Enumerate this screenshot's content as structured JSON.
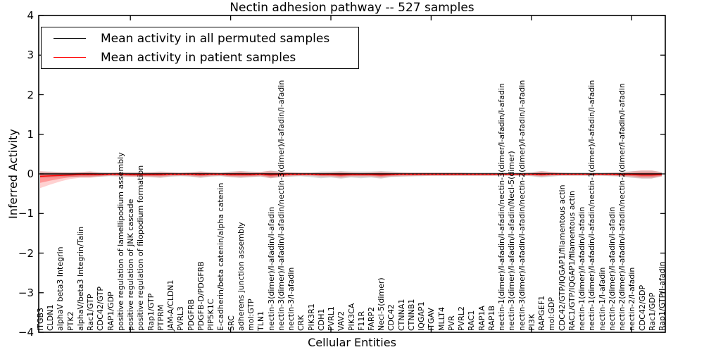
{
  "chart_data": {
    "type": "line",
    "title": "Nectin adhesion pathway -- 527 samples",
    "xlabel": "Cellular Entities",
    "ylabel": "Inferred Activity",
    "ylim": [
      -4,
      4
    ],
    "yticks": [
      -4,
      -3,
      -2,
      -1,
      0,
      1,
      2,
      3,
      4
    ],
    "grid": false,
    "legend_position": "upper left",
    "entities": [
      "ITGB3",
      "CLDN1",
      "alphaV beta3 Integrin",
      "PTK2",
      "alphaV/beta3 Integrin/Talin",
      "Rac1/GTP",
      "CDC42/GTP",
      "RAP1/GDP",
      "positive regulation of lamellipodium assembly",
      "positive regulation of JNK cascade",
      "positive regulation of filopodium formation",
      "Rap1/GTP",
      "PTPRM",
      "JAM-A/CLDN1",
      "PVRL3",
      "PDGFRB",
      "PDGFB-D/PDGFRB",
      "PIP5K1C",
      "E-cadherin/beta catenin/alpha catenin",
      "SRC",
      "adherens junction assembly",
      "mol:GTP",
      "TLN1",
      "nectin-3(dimer)/I-afadin/I-afadin",
      "nectin-3(dimer)/I-afadin/I-afadin/nectin-3(dimer)/I-afadin/I-afadin",
      "nectin-3/I-afadin",
      "CRK",
      "PIK3R1",
      "CDH1",
      "PVRL1",
      "VAV2",
      "PIK3CA",
      "F11R",
      "FARP2",
      "Necl-5(dimer)",
      "CDC42",
      "CTNNA1",
      "CTNNB1",
      "IQGAP1",
      "ITGAV",
      "MLLT4",
      "PVR",
      "PVRL2",
      "RAC1",
      "RAP1A",
      "RAP1B",
      "nectin-1(dimer)/I-afadin/I-afadin/nectin-3(dimer/I-afadin/I-afadin",
      "nectin-3(dimer)/I-afadin/I-afadin/Necl-5(dimer)",
      "nectin-3(dimer)/I-afadin/I-afadin/nectin-2(dimer)/I-afadin/I-afadin",
      "PI3K",
      "RAPGEF1",
      "mol:GDP",
      "CDC42/GTP/IQGAP1/filamentous actin",
      "RAC1/GTP/IQGAP1/filamentous actin",
      "nectin-1(dimer)/I-afadin/I-afadin",
      "nectin-1(dimer)/I-afadin/I-afadin/nectin-1(dimer)/I-afadin/I-afadin",
      "nectin-1/I-afadin",
      "nectin-2(dimer)/I-afadin/I-afadin",
      "nectin-2(dimer)/I-afadin/I-afadin/nectin-2(dimer/I-afadin/I-afadin",
      "nectin-2/I-afadin",
      "CDC42/GDP",
      "Rac1/GDP",
      "Rap1/GTP/I-afadin"
    ],
    "series": [
      {
        "name": "Mean activity in all permuted samples",
        "color": "#000000",
        "band_color": "#aaaaaa",
        "values": [
          0,
          0,
          0,
          0,
          0,
          0,
          0,
          0,
          0,
          0,
          0,
          0,
          0,
          0,
          0,
          0,
          0,
          0,
          0,
          0,
          0,
          0,
          0,
          0,
          0,
          0,
          0,
          0,
          0,
          0,
          0,
          0,
          0,
          0,
          0,
          0,
          0,
          0,
          0,
          0,
          0,
          0,
          0,
          0,
          0,
          0,
          0,
          0,
          0,
          0,
          0,
          0,
          0,
          0,
          0,
          0,
          0,
          0,
          0,
          0,
          0,
          0,
          0
        ],
        "band_above": [
          0.06,
          0.06,
          0.05,
          0.05,
          0.05,
          0.06,
          0.05,
          0.04,
          0.05,
          0.05,
          0.05,
          0.05,
          0.06,
          0.05,
          0.04,
          0.05,
          0.06,
          0.05,
          0.04,
          0.06,
          0.07,
          0.06,
          0.05,
          0.08,
          0.06,
          0.05,
          0.04,
          0.04,
          0.06,
          0.06,
          0.07,
          0.06,
          0.06,
          0.06,
          0.07,
          0.06,
          0.05,
          0.04,
          0.04,
          0.04,
          0.04,
          0.04,
          0.04,
          0.04,
          0.04,
          0.04,
          0.04,
          0.04,
          0.04,
          0.05,
          0.07,
          0.05,
          0.04,
          0.04,
          0.04,
          0.04,
          0.04,
          0.04,
          0.05,
          0.07,
          0.08,
          0.08,
          0.05
        ],
        "band_below": [
          0.1,
          0.09,
          0.08,
          0.08,
          0.08,
          0.08,
          0.07,
          0.06,
          0.07,
          0.07,
          0.07,
          0.08,
          0.1,
          0.07,
          0.06,
          0.07,
          0.1,
          0.07,
          0.06,
          0.08,
          0.1,
          0.08,
          0.07,
          0.11,
          0.08,
          0.07,
          0.06,
          0.08,
          0.11,
          0.09,
          0.12,
          0.09,
          0.11,
          0.09,
          0.12,
          0.08,
          0.07,
          0.06,
          0.06,
          0.05,
          0.05,
          0.05,
          0.05,
          0.05,
          0.05,
          0.05,
          0.05,
          0.05,
          0.05,
          0.06,
          0.09,
          0.07,
          0.05,
          0.05,
          0.05,
          0.05,
          0.05,
          0.06,
          0.07,
          0.1,
          0.12,
          0.12,
          0.06
        ]
      },
      {
        "name": "Mean activity in patient samples",
        "color": "#ff0000",
        "band_color": "#ff0000",
        "values": [
          -0.06,
          -0.05,
          -0.04,
          -0.03,
          -0.02,
          -0.02,
          -0.02,
          -0.01,
          -0.01,
          -0.02,
          -0.02,
          -0.02,
          -0.02,
          -0.01,
          -0.01,
          -0.01,
          -0.02,
          -0.01,
          -0.01,
          -0.02,
          -0.02,
          -0.02,
          -0.01,
          -0.03,
          -0.02,
          -0.01,
          -0.01,
          -0.01,
          -0.02,
          -0.02,
          -0.03,
          -0.02,
          -0.02,
          -0.02,
          -0.03,
          -0.02,
          -0.01,
          -0.01,
          -0.01,
          -0.01,
          -0.01,
          -0.01,
          -0.01,
          -0.01,
          -0.01,
          -0.01,
          -0.01,
          -0.01,
          -0.01,
          -0.01,
          -0.02,
          -0.01,
          -0.01,
          -0.01,
          -0.01,
          -0.01,
          -0.01,
          -0.01,
          -0.02,
          -0.02,
          -0.03,
          -0.03,
          -0.02
        ],
        "band_above": [
          0.13,
          0.1,
          0.08,
          0.06,
          0.07,
          0.08,
          0.05,
          0.04,
          0.05,
          0.05,
          0.05,
          0.06,
          0.07,
          0.05,
          0.04,
          0.05,
          0.08,
          0.05,
          0.04,
          0.07,
          0.09,
          0.07,
          0.06,
          0.11,
          0.07,
          0.05,
          0.04,
          0.04,
          0.05,
          0.06,
          0.09,
          0.06,
          0.05,
          0.06,
          0.09,
          0.06,
          0.04,
          0.04,
          0.04,
          0.04,
          0.04,
          0.04,
          0.04,
          0.03,
          0.03,
          0.03,
          0.03,
          0.03,
          0.03,
          0.04,
          0.09,
          0.06,
          0.04,
          0.03,
          0.03,
          0.03,
          0.03,
          0.04,
          0.05,
          0.08,
          0.12,
          0.12,
          0.06
        ],
        "band_below": [
          0.3,
          0.22,
          0.15,
          0.1,
          0.08,
          0.08,
          0.05,
          0.04,
          0.05,
          0.05,
          0.06,
          0.06,
          0.07,
          0.05,
          0.04,
          0.05,
          0.07,
          0.05,
          0.04,
          0.06,
          0.07,
          0.06,
          0.05,
          0.08,
          0.06,
          0.05,
          0.04,
          0.04,
          0.05,
          0.05,
          0.07,
          0.05,
          0.05,
          0.05,
          0.07,
          0.05,
          0.05,
          0.05,
          0.04,
          0.04,
          0.04,
          0.04,
          0.04,
          0.04,
          0.04,
          0.04,
          0.03,
          0.03,
          0.03,
          0.04,
          0.05,
          0.04,
          0.03,
          0.03,
          0.03,
          0.03,
          0.03,
          0.04,
          0.04,
          0.06,
          0.08,
          0.08,
          0.05
        ]
      }
    ]
  },
  "legend": {
    "entries": [
      {
        "label": "Mean activity in all permuted samples",
        "color": "#000000"
      },
      {
        "label": "Mean activity in patient samples",
        "color": "#ff0000"
      }
    ]
  }
}
